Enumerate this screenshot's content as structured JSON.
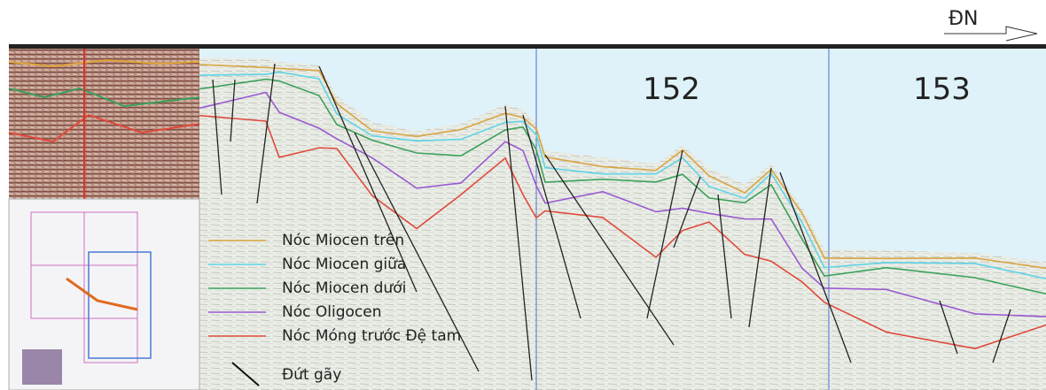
{
  "direction": "ĐN",
  "blocks": [
    "152",
    "153"
  ],
  "legend": [
    {
      "label": "Nóc Miocen trên",
      "color": "#d9a441"
    },
    {
      "label": "Nóc Miocen giữa",
      "color": "#5fd3e6"
    },
    {
      "label": "Nóc Miocen dưới",
      "color": "#3aa05a"
    },
    {
      "label": "Nóc Oligocen",
      "color": "#9b59d0"
    },
    {
      "label": "Nóc Móng trước Đệ tam",
      "color": "#e0493a"
    }
  ],
  "fault_label": "Đứt gãy"
}
